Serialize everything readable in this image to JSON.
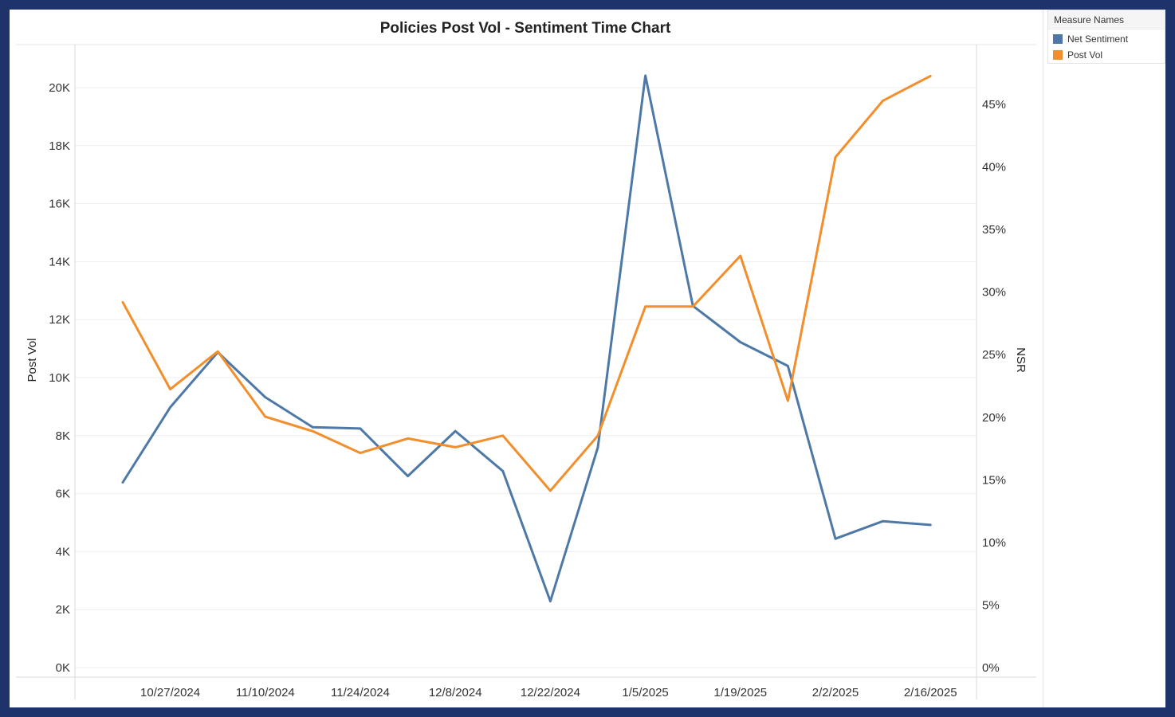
{
  "legend": {
    "title": "Measure Names",
    "items": [
      {
        "label": "Net Sentiment",
        "color": "#4e79a7"
      },
      {
        "label": "Post Vol",
        "color": "#f28e2b"
      }
    ]
  },
  "chart_data": {
    "type": "line",
    "title": "Policies Post Vol - Sentiment Time Chart",
    "xlabel": "",
    "ylabel": "Post Vol",
    "y2label": "NSR",
    "x": [
      "10/20/2024",
      "10/27/2024",
      "11/3/2024",
      "11/10/2024",
      "11/17/2024",
      "11/24/2024",
      "12/1/2024",
      "12/8/2024",
      "12/15/2024",
      "12/22/2024",
      "12/29/2024",
      "1/5/2025",
      "1/12/2025",
      "1/19/2025",
      "1/26/2025",
      "2/2/2025",
      "2/9/2025",
      "2/16/2025"
    ],
    "x_tick_labels": [
      "10/27/2024",
      "11/10/2024",
      "11/24/2024",
      "12/8/2024",
      "12/22/2024",
      "1/5/2025",
      "1/19/2025",
      "2/2/2025",
      "2/16/2025"
    ],
    "ylim": [
      0,
      21000
    ],
    "y_ticks": [
      "0K",
      "2K",
      "4K",
      "6K",
      "8K",
      "10K",
      "12K",
      "14K",
      "16K",
      "18K",
      "20K"
    ],
    "y2lim": [
      0,
      0.49
    ],
    "y2_ticks": [
      "0%",
      "5%",
      "10%",
      "15%",
      "20%",
      "25%",
      "30%",
      "35%",
      "40%",
      "45%"
    ],
    "grid": true,
    "legend_position": "top-right",
    "series": [
      {
        "name": "Net Sentiment",
        "axis": "right",
        "color": "#4e79a7",
        "values": [
          0.148,
          0.208,
          0.252,
          0.216,
          0.192,
          0.191,
          0.153,
          0.189,
          0.157,
          0.053,
          0.176,
          0.473,
          0.289,
          0.26,
          0.241,
          0.103,
          0.117,
          0.114
        ]
      },
      {
        "name": "Post Vol",
        "axis": "left",
        "color": "#f28e2b",
        "values": [
          12600,
          9600,
          10900,
          8650,
          8150,
          7400,
          7900,
          7600,
          8000,
          6100,
          8000,
          12450,
          12450,
          14200,
          9200,
          17600,
          19550,
          20400
        ]
      }
    ]
  }
}
